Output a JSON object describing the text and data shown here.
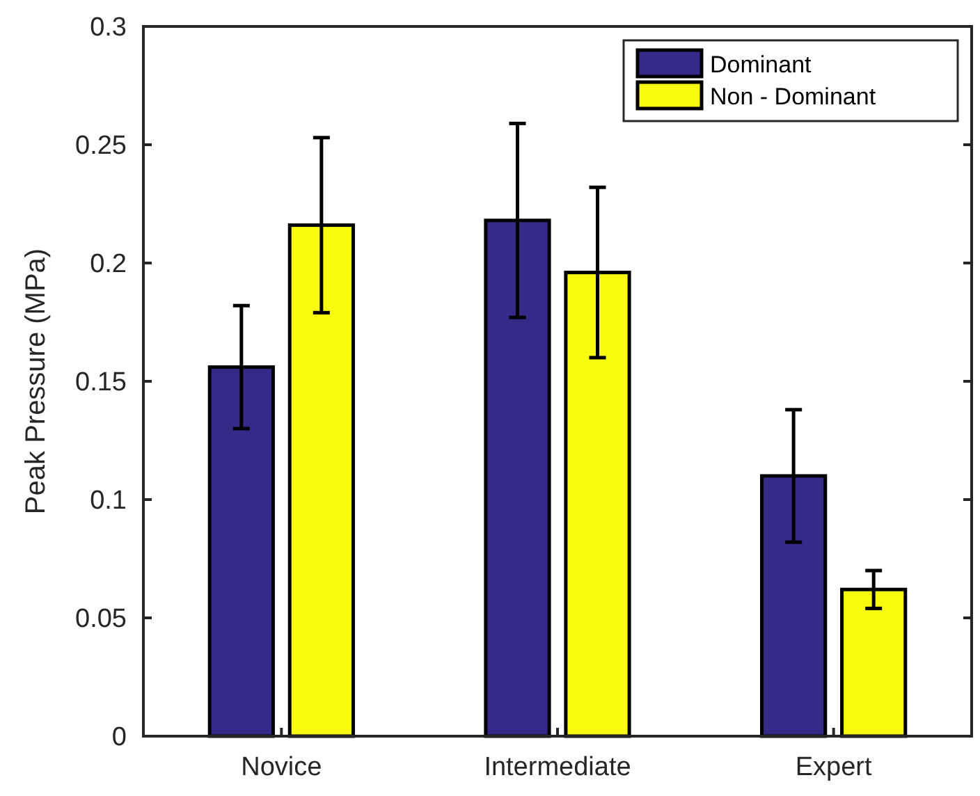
{
  "chart_data": {
    "type": "bar",
    "ylabel": "Peak Pressure (MPa)",
    "categories": [
      "Novice",
      "Intermediate",
      "Expert"
    ],
    "series": [
      {
        "name": "Dominant",
        "color": "#352a87",
        "values": [
          0.156,
          0.218,
          0.11
        ],
        "errors": [
          0.026,
          0.041,
          0.028
        ]
      },
      {
        "name": "Non - Dominant",
        "color": "#f9fb0e",
        "values": [
          0.216,
          0.196,
          0.062
        ],
        "errors": [
          0.037,
          0.036,
          0.008
        ]
      }
    ],
    "ylim": [
      0,
      0.3
    ],
    "yticks": [
      0,
      0.05,
      0.1,
      0.15,
      0.2,
      0.25,
      0.3
    ],
    "legend": "top right",
    "grid": false
  }
}
